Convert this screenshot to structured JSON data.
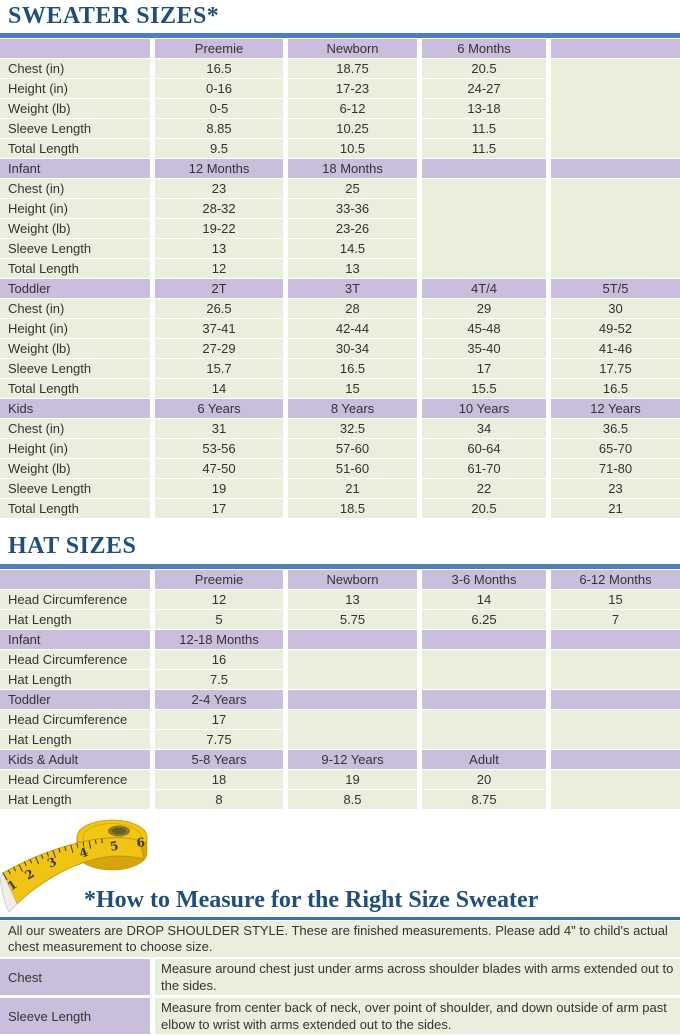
{
  "titles": {
    "sweater": "SWEATER SIZES*",
    "hat": "HAT SIZES",
    "measure_heading": "*How to Measure for the Right Size Sweater"
  },
  "colors": {
    "title_blue": "#1F4E79",
    "rule_blue": "#4E7FBA",
    "header_purple": "#C9BFDC",
    "row_green": "#EAEEDC",
    "text": "#333333",
    "tape_yellow": "#F0C314"
  },
  "sweater_table": {
    "sections": [
      {
        "header": [
          "",
          "Preemie",
          "Newborn",
          "6 Months",
          ""
        ],
        "rows": [
          {
            "label": "Chest (in)",
            "values": [
              "16.5",
              "18.75",
              "20.5",
              ""
            ]
          },
          {
            "label": "Height (in)",
            "values": [
              "0-16",
              "17-23",
              "24-27",
              ""
            ]
          },
          {
            "label": "Weight (lb)",
            "values": [
              "0-5",
              "6-12",
              "13-18",
              ""
            ]
          },
          {
            "label": "Sleeve Length",
            "values": [
              "8.85",
              "10.25",
              "11.5",
              ""
            ]
          },
          {
            "label": "Total Length",
            "values": [
              "9.5",
              "10.5",
              "11.5",
              ""
            ]
          }
        ]
      },
      {
        "header": [
          "Infant",
          "12 Months",
          "18 Months",
          "",
          ""
        ],
        "rows": [
          {
            "label": "Chest (in)",
            "values": [
              "23",
              "25",
              "",
              ""
            ]
          },
          {
            "label": "Height (in)",
            "values": [
              "28-32",
              "33-36",
              "",
              ""
            ]
          },
          {
            "label": "Weight (lb)",
            "values": [
              "19-22",
              "23-26",
              "",
              ""
            ]
          },
          {
            "label": "Sleeve Length",
            "values": [
              "13",
              "14.5",
              "",
              ""
            ]
          },
          {
            "label": "Total Length",
            "values": [
              "12",
              "13",
              "",
              ""
            ]
          }
        ]
      },
      {
        "header": [
          "Toddler",
          "2T",
          "3T",
          "4T/4",
          "5T/5"
        ],
        "rows": [
          {
            "label": "Chest (in)",
            "values": [
              "26.5",
              "28",
              "29",
              "30"
            ]
          },
          {
            "label": "Height (in)",
            "values": [
              "37-41",
              "42-44",
              "45-48",
              "49-52"
            ]
          },
          {
            "label": "Weight (lb)",
            "values": [
              "27-29",
              "30-34",
              "35-40",
              "41-46"
            ]
          },
          {
            "label": "Sleeve Length",
            "values": [
              "15.7",
              "16.5",
              "17",
              "17.75"
            ]
          },
          {
            "label": "Total Length",
            "values": [
              "14",
              "15",
              "15.5",
              "16.5"
            ]
          }
        ]
      },
      {
        "header": [
          "Kids",
          "6 Years",
          "8 Years",
          "10 Years",
          "12 Years"
        ],
        "rows": [
          {
            "label": "Chest (in)",
            "values": [
              "31",
              "32.5",
              "34",
              "36.5"
            ]
          },
          {
            "label": "Height (in)",
            "values": [
              "53-56",
              "57-60",
              "60-64",
              "65-70"
            ]
          },
          {
            "label": "Weight (lb)",
            "values": [
              "47-50",
              "51-60",
              "61-70",
              "71-80"
            ]
          },
          {
            "label": "Sleeve Length",
            "values": [
              "19",
              "21",
              "22",
              "23"
            ]
          },
          {
            "label": "Total Length",
            "values": [
              "17",
              "18.5",
              "20.5",
              "21"
            ]
          }
        ]
      }
    ]
  },
  "hat_table": {
    "sections": [
      {
        "header": [
          "",
          "Preemie",
          "Newborn",
          "3-6 Months",
          "6-12 Months"
        ],
        "rows": [
          {
            "label": "Head Circumference",
            "values": [
              "12",
              "13",
              "14",
              "15"
            ]
          },
          {
            "label": "Hat Length",
            "values": [
              "5",
              "5.75",
              "6.25",
              "7"
            ]
          }
        ]
      },
      {
        "header": [
          "Infant",
          "12-18 Months",
          "",
          "",
          ""
        ],
        "rows": [
          {
            "label": "Head Circumference",
            "values": [
              "16",
              "",
              "",
              ""
            ]
          },
          {
            "label": "Hat Length",
            "values": [
              "7.5",
              "",
              "",
              ""
            ]
          }
        ]
      },
      {
        "header": [
          "Toddler",
          "2-4 Years",
          "",
          "",
          ""
        ],
        "rows": [
          {
            "label": "Head Circumference",
            "values": [
              "17",
              "",
              "",
              ""
            ]
          },
          {
            "label": "Hat Length",
            "values": [
              "7.75",
              "",
              "",
              ""
            ]
          }
        ]
      },
      {
        "header": [
          "Kids & Adult",
          "5-8 Years",
          "9-12 Years",
          "Adult",
          ""
        ],
        "rows": [
          {
            "label": "Head Circumference",
            "values": [
              "18",
              "19",
              "20",
              ""
            ]
          },
          {
            "label": "Hat Length",
            "values": [
              "8",
              "8.5",
              "8.75",
              ""
            ]
          }
        ]
      }
    ]
  },
  "measure": {
    "intro": "All our sweaters are DROP SHOULDER STYLE.  These are finished measurements.  Please add 4\" to child's actual chest measurement to choose size.",
    "rows": [
      {
        "label": "Chest",
        "text": "Measure around chest just under arms across shoulder blades with arms extended out to the sides."
      },
      {
        "label": "Sleeve Length",
        "text": "Measure from center back of neck, over point of shoulder, and down outside of arm past elbow to wrist with arms extended out to the sides."
      }
    ]
  },
  "tape": {
    "numbers": [
      "1",
      "2",
      "3",
      "4",
      "5",
      "6"
    ]
  }
}
